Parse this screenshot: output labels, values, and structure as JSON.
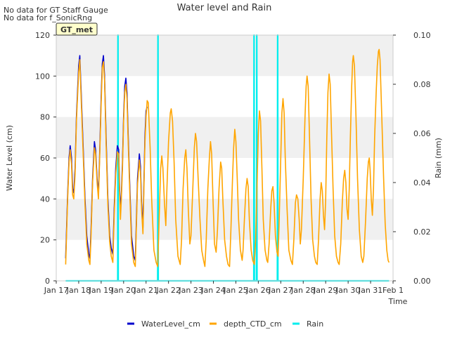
{
  "notes": [
    "No data for GT Staff Gauge",
    "No data for f_SonicRng"
  ],
  "site_badge": "GT_met",
  "chart_data": {
    "type": "line",
    "title": "Water level and Rain",
    "xlabel": "Time",
    "ylabel_left": "Water Level (cm)",
    "ylabel_right": "Rain (mm)",
    "ylim_left": [
      0,
      120
    ],
    "ylim_right": [
      0,
      0.1
    ],
    "yticks_left": [
      0,
      20,
      40,
      60,
      80,
      100,
      120
    ],
    "yticks_right": [
      "0.00",
      "0.02",
      "0.04",
      "0.06",
      "0.08",
      "0.10"
    ],
    "xlim_days": [
      17,
      32
    ],
    "xticks": [
      "Jan 17",
      "Jan 18",
      "Jan 19",
      "Jan 20",
      "Jan 21",
      "Jan 22",
      "Jan 23",
      "Jan 24",
      "Jan 25",
      "Jan 26",
      "Jan 27",
      "Jan 28",
      "Jan 29",
      "Jan 30",
      "Jan 31",
      "Feb 1"
    ],
    "grid": "horizontal bands",
    "legend_position": "bottom",
    "series": [
      {
        "name": "WaterLevel_cm",
        "color": "#0000cc",
        "axis": "left",
        "points": [
          [
            17.42,
            11
          ],
          [
            17.5,
            40
          ],
          [
            17.57,
            60
          ],
          [
            17.62,
            66
          ],
          [
            17.68,
            60
          ],
          [
            17.73,
            45
          ],
          [
            17.78,
            43
          ],
          [
            17.84,
            55
          ],
          [
            17.9,
            80
          ],
          [
            18.0,
            105
          ],
          [
            18.05,
            110
          ],
          [
            18.1,
            95
          ],
          [
            18.2,
            65
          ],
          [
            18.28,
            40
          ],
          [
            18.36,
            22
          ],
          [
            18.45,
            13
          ],
          [
            18.5,
            11
          ],
          [
            18.55,
            25
          ],
          [
            18.62,
            50
          ],
          [
            18.7,
            68
          ],
          [
            18.75,
            64
          ],
          [
            18.82,
            50
          ],
          [
            18.88,
            42
          ],
          [
            18.93,
            60
          ],
          [
            19.0,
            90
          ],
          [
            19.05,
            106
          ],
          [
            19.1,
            110
          ],
          [
            19.15,
            100
          ],
          [
            19.22,
            70
          ],
          [
            19.3,
            40
          ],
          [
            19.38,
            22
          ],
          [
            19.45,
            16
          ],
          [
            19.52,
            13
          ],
          [
            19.58,
            35
          ],
          [
            19.65,
            55
          ],
          [
            19.72,
            66
          ],
          [
            19.78,
            64
          ],
          [
            19.82,
            45
          ],
          [
            19.86,
            34
          ],
          [
            19.9,
            42
          ],
          [
            19.95,
            58
          ],
          [
            20.0,
            80
          ],
          [
            20.05,
            95
          ],
          [
            20.1,
            99
          ],
          [
            20.15,
            92
          ],
          [
            20.2,
            72
          ],
          [
            20.28,
            45
          ],
          [
            20.35,
            22
          ],
          [
            20.45,
            12
          ],
          [
            20.52,
            10
          ],
          [
            20.55,
            22
          ],
          [
            20.62,
            50
          ],
          [
            20.7,
            62
          ],
          [
            20.75,
            56
          ],
          [
            20.8,
            38
          ],
          [
            20.86,
            26
          ],
          [
            20.9,
            45
          ],
          [
            20.95,
            70
          ],
          [
            21.0,
            83
          ],
          [
            21.05,
            85
          ]
        ]
      },
      {
        "name": "depth_CTD_cm",
        "color": "#ffa500",
        "axis": "left",
        "points": [
          [
            17.42,
            8
          ],
          [
            17.5,
            38
          ],
          [
            17.57,
            58
          ],
          [
            17.62,
            64
          ],
          [
            17.68,
            57
          ],
          [
            17.73,
            42
          ],
          [
            17.78,
            40
          ],
          [
            17.84,
            52
          ],
          [
            17.9,
            78
          ],
          [
            18.0,
            102
          ],
          [
            18.05,
            108
          ],
          [
            18.1,
            92
          ],
          [
            18.2,
            62
          ],
          [
            18.28,
            37
          ],
          [
            18.36,
            18
          ],
          [
            18.45,
            10
          ],
          [
            18.5,
            8
          ],
          [
            18.55,
            22
          ],
          [
            18.62,
            48
          ],
          [
            18.7,
            65
          ],
          [
            18.75,
            62
          ],
          [
            18.82,
            48
          ],
          [
            18.88,
            40
          ],
          [
            18.93,
            58
          ],
          [
            19.0,
            87
          ],
          [
            19.05,
            104
          ],
          [
            19.1,
            107
          ],
          [
            19.15,
            98
          ],
          [
            19.22,
            67
          ],
          [
            19.3,
            37
          ],
          [
            19.38,
            19
          ],
          [
            19.45,
            12
          ],
          [
            19.52,
            9
          ],
          [
            19.58,
            32
          ],
          [
            19.65,
            52
          ],
          [
            19.72,
            63
          ],
          [
            19.78,
            62
          ],
          [
            19.82,
            42
          ],
          [
            19.86,
            30
          ],
          [
            19.9,
            40
          ],
          [
            19.95,
            55
          ],
          [
            20.0,
            78
          ],
          [
            20.05,
            92
          ],
          [
            20.1,
            96
          ],
          [
            20.15,
            89
          ],
          [
            20.2,
            69
          ],
          [
            20.28,
            42
          ],
          [
            20.35,
            18
          ],
          [
            20.45,
            9
          ],
          [
            20.52,
            7
          ],
          [
            20.55,
            19
          ],
          [
            20.62,
            47
          ],
          [
            20.7,
            59
          ],
          [
            20.75,
            53
          ],
          [
            20.8,
            35
          ],
          [
            20.86,
            23
          ],
          [
            20.9,
            42
          ],
          [
            20.95,
            67
          ],
          [
            21.0,
            80
          ],
          [
            21.05,
            88
          ],
          [
            21.1,
            87
          ],
          [
            21.18,
            65
          ],
          [
            21.25,
            40
          ],
          [
            21.35,
            15
          ],
          [
            21.45,
            9
          ],
          [
            21.52,
            7
          ],
          [
            21.58,
            30
          ],
          [
            21.65,
            55
          ],
          [
            21.7,
            61
          ],
          [
            21.75,
            55
          ],
          [
            21.82,
            38
          ],
          [
            21.88,
            27
          ],
          [
            21.93,
            45
          ],
          [
            22.0,
            68
          ],
          [
            22.08,
            82
          ],
          [
            22.12,
            84
          ],
          [
            22.18,
            78
          ],
          [
            22.25,
            58
          ],
          [
            22.32,
            30
          ],
          [
            22.42,
            12
          ],
          [
            22.52,
            8
          ],
          [
            22.58,
            20
          ],
          [
            22.65,
            45
          ],
          [
            22.72,
            60
          ],
          [
            22.77,
            64
          ],
          [
            22.82,
            55
          ],
          [
            22.88,
            35
          ],
          [
            22.95,
            18
          ],
          [
            23.0,
            22
          ],
          [
            23.08,
            45
          ],
          [
            23.15,
            65
          ],
          [
            23.2,
            72
          ],
          [
            23.25,
            68
          ],
          [
            23.32,
            50
          ],
          [
            23.4,
            30
          ],
          [
            23.48,
            15
          ],
          [
            23.56,
            10
          ],
          [
            23.62,
            7
          ],
          [
            23.68,
            20
          ],
          [
            23.75,
            45
          ],
          [
            23.82,
            60
          ],
          [
            23.87,
            68
          ],
          [
            23.92,
            62
          ],
          [
            23.98,
            40
          ],
          [
            24.05,
            18
          ],
          [
            24.12,
            14
          ],
          [
            24.18,
            25
          ],
          [
            24.25,
            45
          ],
          [
            24.32,
            58
          ],
          [
            24.37,
            55
          ],
          [
            24.42,
            40
          ],
          [
            24.5,
            20
          ],
          [
            24.58,
            12
          ],
          [
            24.65,
            8
          ],
          [
            24.72,
            7
          ],
          [
            24.78,
            25
          ],
          [
            24.85,
            50
          ],
          [
            24.9,
            65
          ],
          [
            24.95,
            74
          ],
          [
            25.0,
            68
          ],
          [
            25.06,
            50
          ],
          [
            25.12,
            30
          ],
          [
            25.2,
            15
          ],
          [
            25.28,
            10
          ],
          [
            25.32,
            15
          ],
          [
            25.38,
            30
          ],
          [
            25.45,
            45
          ],
          [
            25.5,
            50
          ],
          [
            25.55,
            46
          ],
          [
            25.6,
            30
          ],
          [
            25.68,
            15
          ],
          [
            25.75,
            10
          ],
          [
            25.82,
            8
          ],
          [
            25.88,
            20
          ],
          [
            25.95,
            50
          ],
          [
            26.0,
            72
          ],
          [
            26.05,
            83
          ],
          [
            26.1,
            78
          ],
          [
            26.16,
            55
          ],
          [
            26.22,
            30
          ],
          [
            26.3,
            15
          ],
          [
            26.38,
            10
          ],
          [
            26.42,
            9
          ],
          [
            26.48,
            18
          ],
          [
            26.55,
            35
          ],
          [
            26.6,
            44
          ],
          [
            26.65,
            46
          ],
          [
            26.7,
            38
          ],
          [
            26.76,
            22
          ],
          [
            26.83,
            14
          ],
          [
            26.88,
            12
          ],
          [
            26.93,
            30
          ],
          [
            27.0,
            60
          ],
          [
            27.05,
            82
          ],
          [
            27.1,
            89
          ],
          [
            27.15,
            82
          ],
          [
            27.2,
            60
          ],
          [
            27.28,
            35
          ],
          [
            27.36,
            15
          ],
          [
            27.45,
            10
          ],
          [
            27.52,
            8
          ],
          [
            27.58,
            20
          ],
          [
            27.65,
            38
          ],
          [
            27.7,
            42
          ],
          [
            27.76,
            40
          ],
          [
            27.82,
            30
          ],
          [
            27.87,
            18
          ],
          [
            27.92,
            25
          ],
          [
            28.0,
            50
          ],
          [
            28.08,
            80
          ],
          [
            28.13,
            95
          ],
          [
            28.17,
            100
          ],
          [
            28.22,
            95
          ],
          [
            28.28,
            70
          ],
          [
            28.35,
            40
          ],
          [
            28.42,
            20
          ],
          [
            28.5,
            12
          ],
          [
            28.56,
            9
          ],
          [
            28.62,
            8
          ],
          [
            28.68,
            20
          ],
          [
            28.75,
            40
          ],
          [
            28.8,
            48
          ],
          [
            28.85,
            44
          ],
          [
            28.9,
            32
          ],
          [
            28.95,
            25
          ],
          [
            29.0,
            40
          ],
          [
            29.05,
            70
          ],
          [
            29.1,
            92
          ],
          [
            29.15,
            101
          ],
          [
            29.2,
            96
          ],
          [
            29.26,
            72
          ],
          [
            29.33,
            45
          ],
          [
            29.4,
            22
          ],
          [
            29.48,
            12
          ],
          [
            29.55,
            9
          ],
          [
            29.6,
            8
          ],
          [
            29.67,
            18
          ],
          [
            29.74,
            38
          ],
          [
            29.8,
            50
          ],
          [
            29.85,
            54
          ],
          [
            29.9,
            48
          ],
          [
            29.95,
            35
          ],
          [
            30.0,
            30
          ],
          [
            30.05,
            45
          ],
          [
            30.1,
            70
          ],
          [
            30.16,
            95
          ],
          [
            30.2,
            107
          ],
          [
            30.23,
            110
          ],
          [
            30.28,
            105
          ],
          [
            30.35,
            80
          ],
          [
            30.42,
            50
          ],
          [
            30.5,
            25
          ],
          [
            30.58,
            12
          ],
          [
            30.65,
            9
          ],
          [
            30.7,
            12
          ],
          [
            30.78,
            30
          ],
          [
            30.85,
            50
          ],
          [
            30.9,
            58
          ],
          [
            30.94,
            60
          ],
          [
            30.98,
            54
          ],
          [
            31.03,
            40
          ],
          [
            31.08,
            32
          ],
          [
            31.13,
            45
          ],
          [
            31.18,
            70
          ],
          [
            31.25,
            92
          ],
          [
            31.3,
            105
          ],
          [
            31.35,
            112
          ],
          [
            31.38,
            113
          ],
          [
            31.42,
            108
          ],
          [
            31.5,
            80
          ],
          [
            31.58,
            50
          ],
          [
            31.65,
            28
          ],
          [
            31.72,
            15
          ],
          [
            31.78,
            10
          ],
          [
            31.82,
            9
          ]
        ]
      },
      {
        "name": "Rain",
        "color": "#00eeee",
        "axis": "right",
        "points": [
          [
            17.42,
            0
          ],
          [
            19.74,
            0
          ],
          [
            19.75,
            0.1
          ],
          [
            19.76,
            0
          ],
          [
            21.52,
            0
          ],
          [
            21.53,
            0.1
          ],
          [
            21.54,
            0
          ],
          [
            25.8,
            0
          ],
          [
            25.81,
            0.1
          ],
          [
            25.82,
            0
          ],
          [
            25.92,
            0
          ],
          [
            25.93,
            0.1
          ],
          [
            25.94,
            0
          ],
          [
            26.85,
            0
          ],
          [
            26.86,
            0.1
          ],
          [
            26.87,
            0
          ],
          [
            31.82,
            0
          ]
        ]
      }
    ]
  }
}
